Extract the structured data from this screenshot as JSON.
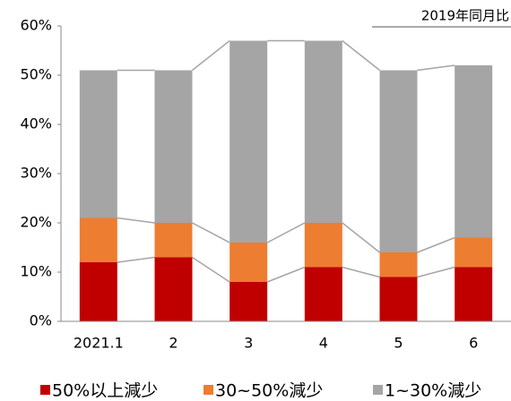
{
  "chart_data": {
    "type": "stacked-bar",
    "annotation": "2019年同月比",
    "categories": [
      "2021.1",
      "2",
      "3",
      "4",
      "5",
      "6"
    ],
    "series": [
      {
        "name": "50%以上減少",
        "color": "#c00000",
        "values": [
          12,
          13,
          8,
          11,
          9,
          11
        ]
      },
      {
        "name": "30~50%減少",
        "color": "#ed7d31",
        "values": [
          9,
          7,
          8,
          9,
          5,
          6
        ]
      },
      {
        "name": "1~30%減少",
        "color": "#a5a5a5",
        "values": [
          30,
          31,
          41,
          37,
          37,
          35
        ]
      }
    ],
    "ylim": [
      0,
      60
    ],
    "yticks": [
      {
        "value": 0,
        "label": "0%"
      },
      {
        "value": 10,
        "label": "10%"
      },
      {
        "value": 20,
        "label": "20%"
      },
      {
        "value": 30,
        "label": "30%"
      },
      {
        "value": 40,
        "label": "40%"
      },
      {
        "value": 50,
        "label": "50%"
      },
      {
        "value": 60,
        "label": "60%"
      }
    ],
    "legend": "bottom"
  }
}
